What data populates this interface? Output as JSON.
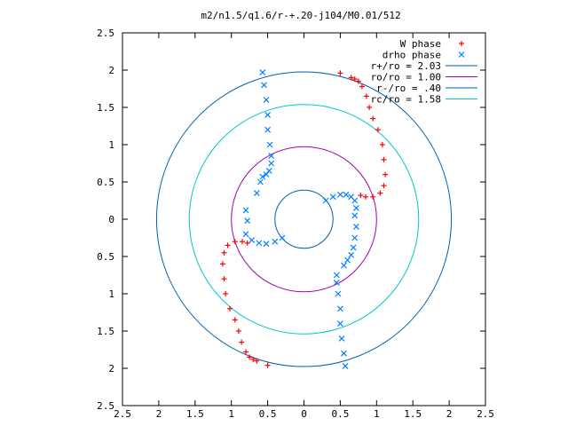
{
  "chart_data": {
    "type": "scatter",
    "title": "m2/n1.5/q1.6/r-+.20-j104/M0.01/512",
    "xlim": [
      -2.5,
      2.5
    ],
    "ylim": [
      -2.5,
      2.5
    ],
    "x_ticks": [
      -2.5,
      -2,
      -1.5,
      -1,
      -0.5,
      0,
      0.5,
      1,
      1.5,
      2,
      2.5
    ],
    "y_ticks": [
      -2.5,
      -2,
      -1.5,
      -1,
      -0.5,
      0,
      0.5,
      1,
      1.5,
      2,
      2.5
    ],
    "x_tick_labels": [
      "2.5",
      "2",
      "1.5",
      "1",
      "0.5",
      "0",
      "0.5",
      "1",
      "1.5",
      "2",
      "2.5"
    ],
    "y_tick_labels": [
      "2.5",
      "2",
      "1.5",
      "1",
      "0.5",
      "0",
      "0.5",
      "1",
      "1.5",
      "2",
      "2.5"
    ],
    "legend_position": "top-right",
    "grid": false,
    "legend": [
      {
        "label": "W phase",
        "marker": "+",
        "color": "#ff0000"
      },
      {
        "label": "drho phase",
        "marker": "x",
        "color": "#0080ff"
      },
      {
        "label": "r+/ro = 2.03",
        "line": true,
        "color": "#0060b0"
      },
      {
        "label": "ro/ro = 1.00",
        "line": true,
        "color": "#a000b0"
      },
      {
        "label": "r-/ro = .40",
        "line": true,
        "color": "#0060b0"
      },
      {
        "label": "rc/ro = 1.58",
        "line": true,
        "color": "#00c8c8"
      }
    ],
    "circles": [
      {
        "r": 2.03,
        "color": "#0060b0"
      },
      {
        "r": 1.0,
        "color": "#a000b0"
      },
      {
        "r": 0.4,
        "color": "#0060b0"
      },
      {
        "r": 1.58,
        "color": "#00c8c8"
      }
    ],
    "series": [
      {
        "name": "W phase",
        "marker": "+",
        "color": "#ff0000",
        "points": [
          [
            0.5,
            1.96
          ],
          [
            0.65,
            1.9
          ],
          [
            0.7,
            1.88
          ],
          [
            0.75,
            1.85
          ],
          [
            0.8,
            1.78
          ],
          [
            0.86,
            1.65
          ],
          [
            0.9,
            1.5
          ],
          [
            0.95,
            1.35
          ],
          [
            1.02,
            1.2
          ],
          [
            1.08,
            1.0
          ],
          [
            1.1,
            0.8
          ],
          [
            1.12,
            0.6
          ],
          [
            1.1,
            0.45
          ],
          [
            1.05,
            0.35
          ],
          [
            0.95,
            0.3
          ],
          [
            0.85,
            0.3
          ],
          [
            0.78,
            0.32
          ],
          [
            -0.5,
            -1.96
          ],
          [
            -0.65,
            -1.9
          ],
          [
            -0.7,
            -1.88
          ],
          [
            -0.75,
            -1.85
          ],
          [
            -0.8,
            -1.78
          ],
          [
            -0.86,
            -1.65
          ],
          [
            -0.9,
            -1.5
          ],
          [
            -0.95,
            -1.35
          ],
          [
            -1.02,
            -1.2
          ],
          [
            -1.08,
            -1.0
          ],
          [
            -1.1,
            -0.8
          ],
          [
            -1.12,
            -0.6
          ],
          [
            -1.1,
            -0.45
          ],
          [
            -1.05,
            -0.35
          ],
          [
            -0.95,
            -0.3
          ],
          [
            -0.85,
            -0.3
          ],
          [
            -0.78,
            -0.32
          ]
        ]
      },
      {
        "name": "drho phase",
        "marker": "x",
        "color": "#0080ff",
        "points": [
          [
            -0.57,
            1.97
          ],
          [
            -0.55,
            1.8
          ],
          [
            -0.52,
            1.6
          ],
          [
            -0.5,
            1.4
          ],
          [
            -0.5,
            1.2
          ],
          [
            -0.47,
            1.0
          ],
          [
            -0.45,
            0.85
          ],
          [
            -0.45,
            0.75
          ],
          [
            -0.48,
            0.65
          ],
          [
            -0.52,
            0.6
          ],
          [
            -0.57,
            0.57
          ],
          [
            -0.6,
            0.5
          ],
          [
            -0.65,
            0.35
          ],
          [
            -0.8,
            0.12
          ],
          [
            -0.78,
            -0.02
          ],
          [
            -0.8,
            -0.2
          ],
          [
            -0.72,
            -0.28
          ],
          [
            -0.62,
            -0.32
          ],
          [
            -0.52,
            -0.33
          ],
          [
            -0.4,
            -0.3
          ],
          [
            -0.3,
            -0.25
          ],
          [
            0.3,
            0.25
          ],
          [
            0.4,
            0.3
          ],
          [
            0.5,
            0.33
          ],
          [
            0.58,
            0.33
          ],
          [
            0.65,
            0.3
          ],
          [
            0.7,
            0.25
          ],
          [
            0.72,
            0.15
          ],
          [
            0.7,
            0.05
          ],
          [
            0.72,
            -0.1
          ],
          [
            0.7,
            -0.25
          ],
          [
            0.68,
            -0.38
          ],
          [
            0.65,
            -0.48
          ],
          [
            0.6,
            -0.55
          ],
          [
            0.55,
            -0.62
          ],
          [
            0.45,
            -0.75
          ],
          [
            0.45,
            -0.85
          ],
          [
            0.47,
            -1.0
          ],
          [
            0.5,
            -1.2
          ],
          [
            0.5,
            -1.4
          ],
          [
            0.52,
            -1.6
          ],
          [
            0.55,
            -1.8
          ],
          [
            0.57,
            -1.97
          ]
        ]
      }
    ]
  }
}
